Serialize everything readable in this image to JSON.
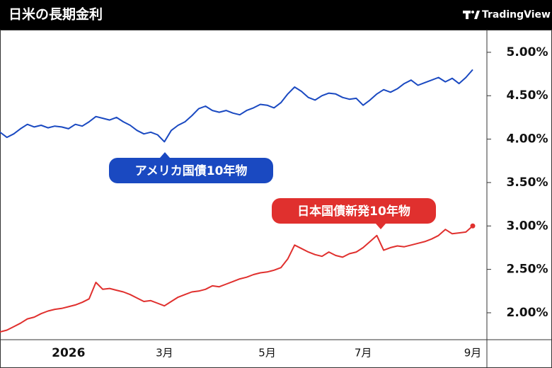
{
  "chart_data": {
    "type": "line",
    "title": "日米の長期金利",
    "brand": "TradingView",
    "categories": [
      null,
      null,
      null,
      null,
      null,
      null,
      null,
      null,
      null,
      null,
      "2026",
      null,
      null,
      null,
      null,
      null,
      null,
      null,
      null,
      null,
      null,
      null,
      null,
      null,
      "3月",
      null,
      null,
      null,
      null,
      null,
      null,
      null,
      null,
      null,
      null,
      null,
      null,
      null,
      null,
      "5月",
      null,
      null,
      null,
      null,
      null,
      null,
      null,
      null,
      null,
      null,
      null,
      null,
      null,
      "7月",
      null,
      null,
      null,
      null,
      null,
      null,
      null,
      null,
      null,
      null,
      null,
      null,
      null,
      null,
      null,
      "9月"
    ],
    "series": [
      {
        "name": "アメリカ国債10年物",
        "color": "#1a49c1",
        "values": [
          4.08,
          4.02,
          4.06,
          4.12,
          4.17,
          4.14,
          4.16,
          4.13,
          4.15,
          4.14,
          4.12,
          4.17,
          4.15,
          4.2,
          4.26,
          4.24,
          4.22,
          4.25,
          4.2,
          4.16,
          4.1,
          4.06,
          4.08,
          4.05,
          3.97,
          4.1,
          4.16,
          4.2,
          4.27,
          4.35,
          4.38,
          4.33,
          4.31,
          4.33,
          4.3,
          4.28,
          4.33,
          4.36,
          4.4,
          4.39,
          4.36,
          4.42,
          4.52,
          4.6,
          4.55,
          4.48,
          4.45,
          4.5,
          4.53,
          4.52,
          4.48,
          4.46,
          4.47,
          4.39,
          4.45,
          4.52,
          4.57,
          4.54,
          4.58,
          4.64,
          4.68,
          4.62,
          4.65,
          4.68,
          4.71,
          4.66,
          4.7,
          4.64,
          4.71,
          4.8
        ]
      },
      {
        "name": "日本国債新発10年物",
        "color": "#e0302e",
        "values": [
          1.78,
          1.8,
          1.84,
          1.88,
          1.93,
          1.95,
          1.99,
          2.02,
          2.04,
          2.05,
          2.07,
          2.09,
          2.12,
          2.16,
          2.35,
          2.27,
          2.28,
          2.26,
          2.24,
          2.21,
          2.17,
          2.13,
          2.14,
          2.11,
          2.08,
          2.13,
          2.18,
          2.21,
          2.24,
          2.25,
          2.27,
          2.31,
          2.3,
          2.33,
          2.36,
          2.39,
          2.41,
          2.44,
          2.46,
          2.47,
          2.49,
          2.52,
          2.62,
          2.78,
          2.74,
          2.7,
          2.67,
          2.65,
          2.7,
          2.66,
          2.64,
          2.68,
          2.7,
          2.75,
          2.82,
          2.89,
          2.72,
          2.75,
          2.77,
          2.76,
          2.78,
          2.8,
          2.82,
          2.85,
          2.89,
          2.96,
          2.91,
          2.92,
          2.93,
          3.0
        ]
      }
    ],
    "ylim": [
      1.69,
      5.26
    ],
    "yticks": [
      {
        "value": 2,
        "label": "2.00%"
      },
      {
        "value": 2.5,
        "label": "2.50%"
      },
      {
        "value": 3,
        "label": "3.00%"
      },
      {
        "value": 3.5,
        "label": "3.50%"
      },
      {
        "value": 4,
        "label": "4.00%"
      },
      {
        "value": 4.5,
        "label": "4.50%"
      },
      {
        "value": 5,
        "label": "5.00%"
      }
    ],
    "y_axis_side": "right",
    "grid": false
  }
}
